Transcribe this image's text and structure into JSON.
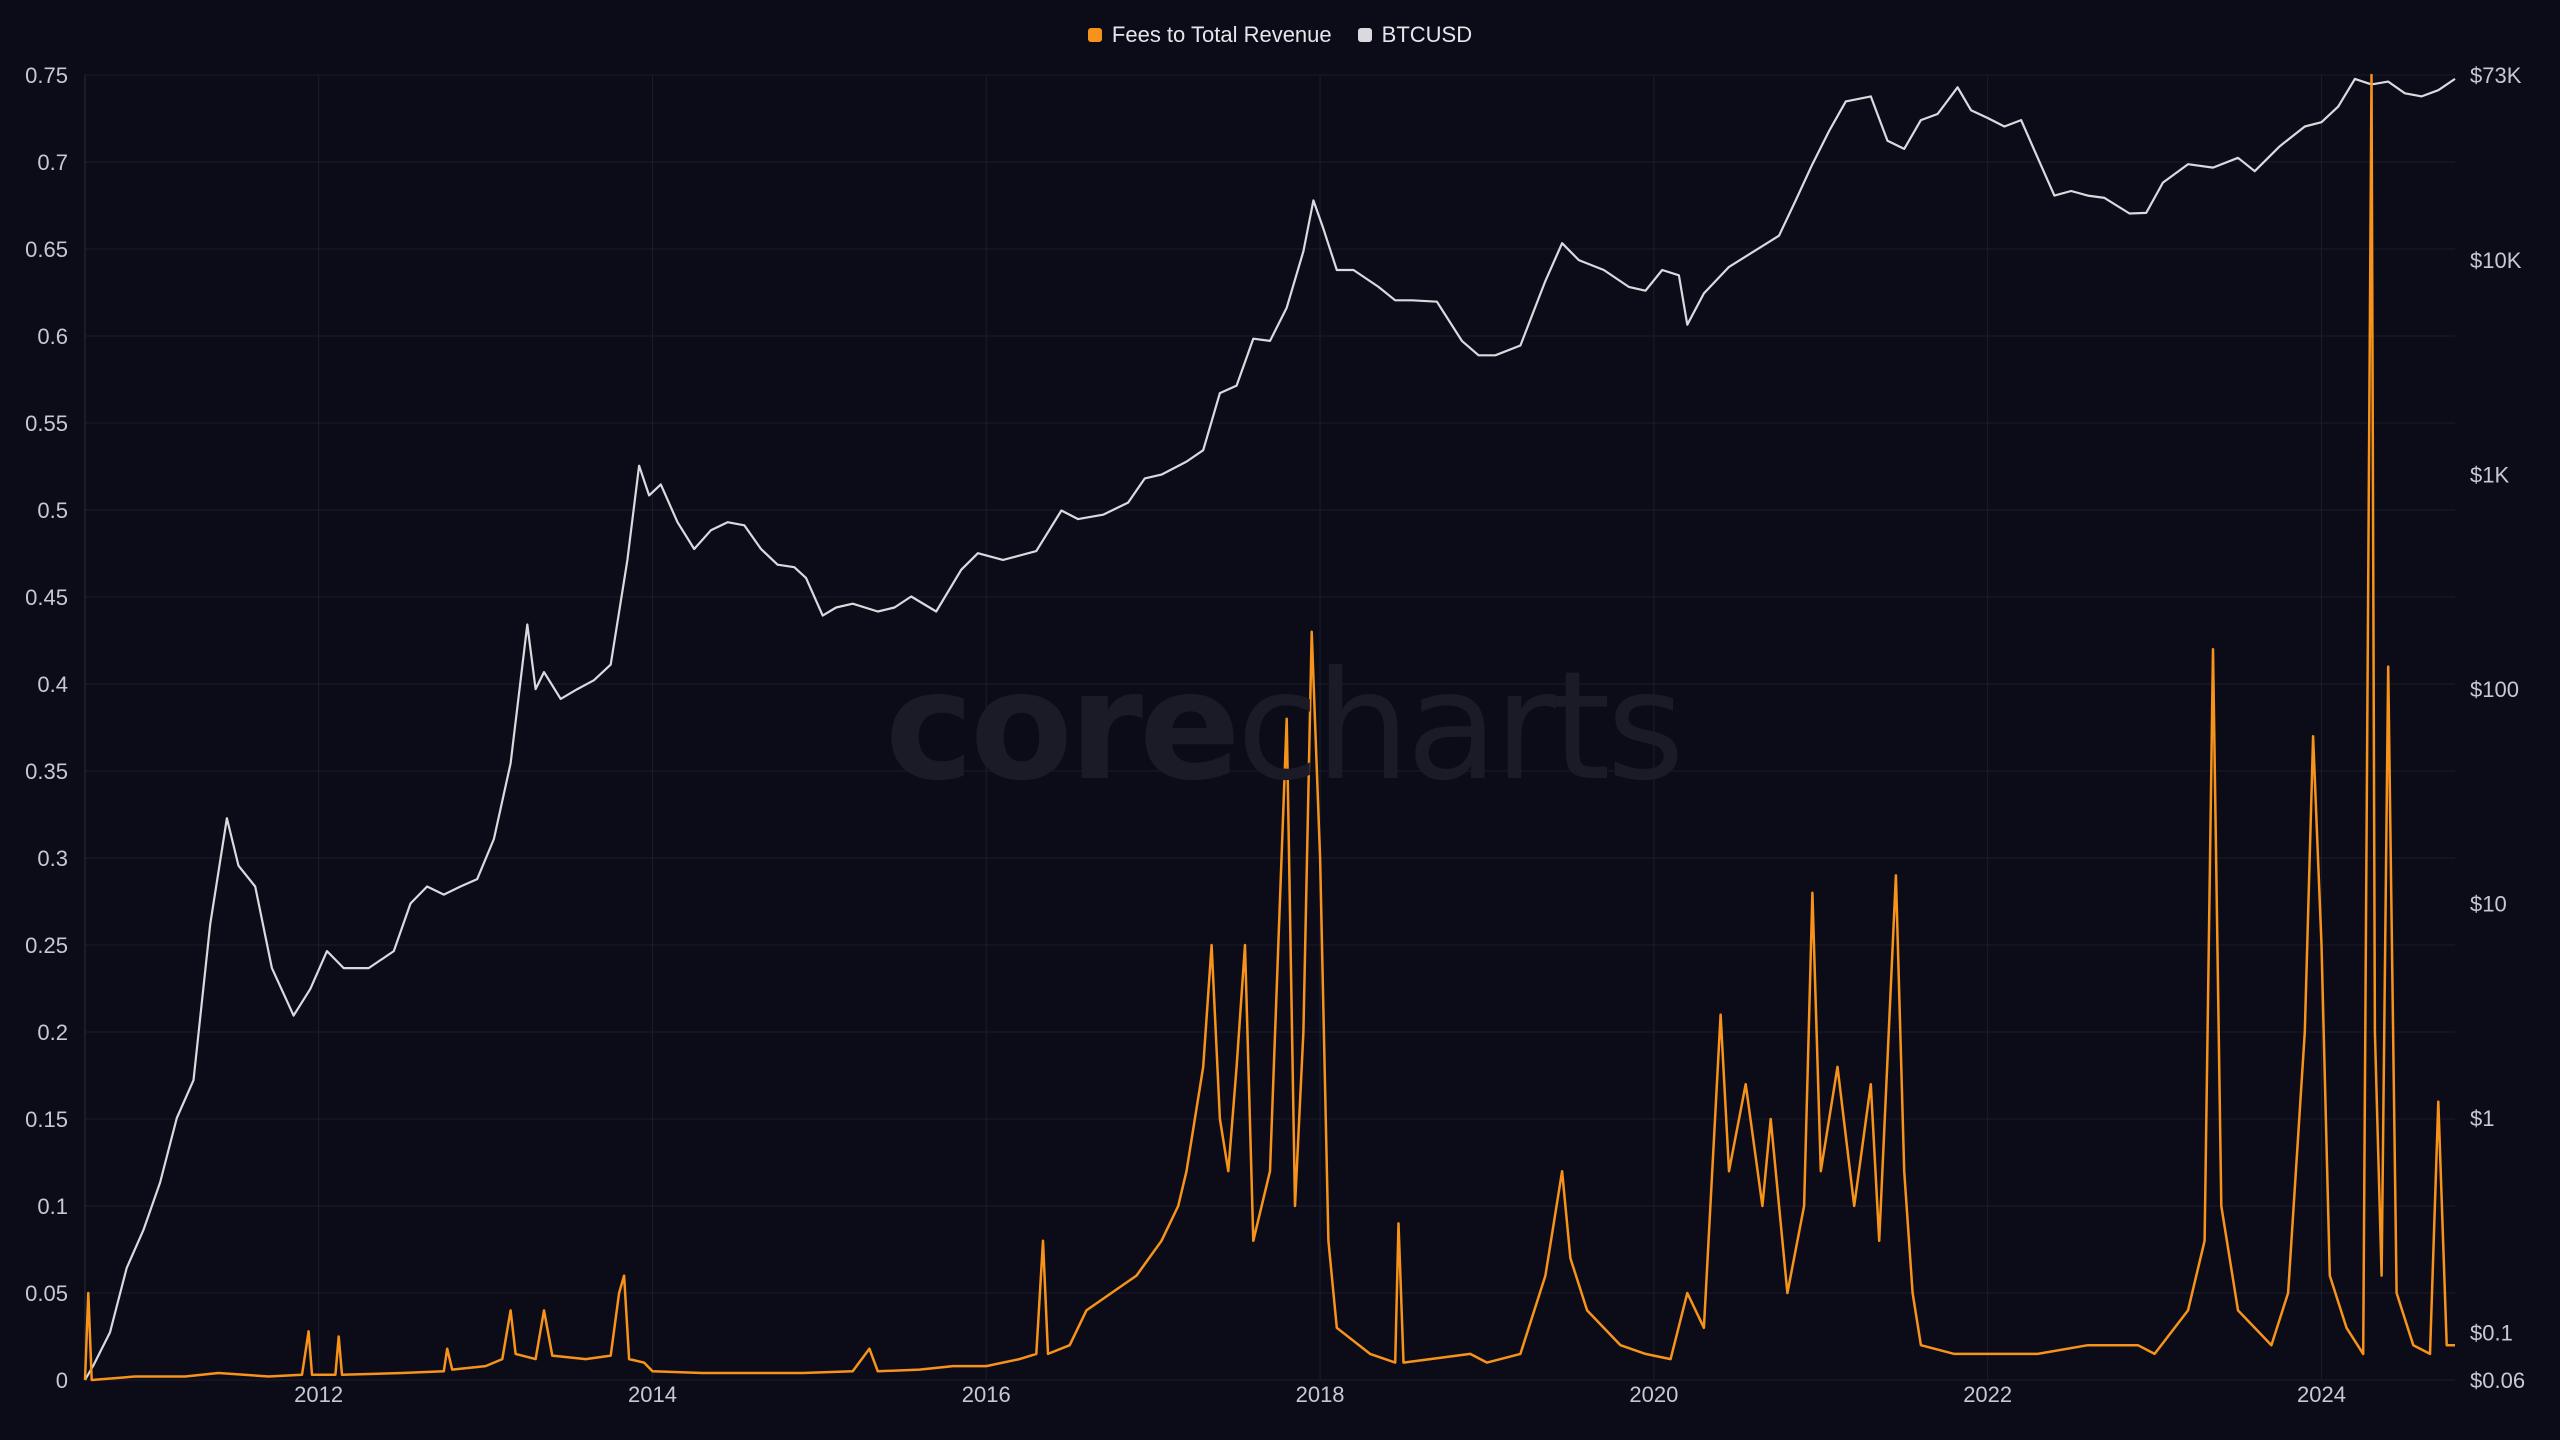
{
  "legend": [
    {
      "label": "Fees to Total Revenue",
      "color": "#f7931a"
    },
    {
      "label": "BTCUSD",
      "color": "#d9d9de"
    }
  ],
  "watermark": {
    "bold": "core",
    "thin": "charts"
  },
  "chart_data": {
    "type": "line",
    "grid": true,
    "legend_position": "top-center",
    "x_axis": {
      "ticks": [
        "2012",
        "2014",
        "2016",
        "2018",
        "2020",
        "2022",
        "2024"
      ],
      "range": [
        2010.6,
        2024.8
      ]
    },
    "y_left": {
      "ticks": [
        "0",
        "0.05",
        "0.1",
        "0.15",
        "0.2",
        "0.25",
        "0.3",
        "0.35",
        "0.4",
        "0.45",
        "0.5",
        "0.55",
        "0.6",
        "0.65",
        "0.7",
        "0.75"
      ],
      "range": [
        0,
        0.75
      ]
    },
    "y_right": {
      "scale": "log",
      "ticks": [
        "$73K",
        "$10K",
        "$1K",
        "$100",
        "$10",
        "$1",
        "$0.1",
        "$0.06"
      ],
      "tick_values": [
        73000,
        10000,
        1000,
        100,
        10,
        1,
        0.1,
        0.06
      ],
      "range": [
        0.06,
        73000
      ]
    },
    "series": [
      {
        "name": "BTCUSD",
        "axis": "right",
        "color": "#d9d9de",
        "points": [
          [
            2010.6,
            0.06
          ],
          [
            2010.65,
            0.07
          ],
          [
            2010.75,
            0.1
          ],
          [
            2010.85,
            0.2
          ],
          [
            2010.95,
            0.3
          ],
          [
            2011.05,
            0.5
          ],
          [
            2011.15,
            1.0
          ],
          [
            2011.25,
            1.5
          ],
          [
            2011.35,
            8
          ],
          [
            2011.45,
            25
          ],
          [
            2011.52,
            15
          ],
          [
            2011.62,
            12
          ],
          [
            2011.72,
            5
          ],
          [
            2011.85,
            3
          ],
          [
            2011.95,
            4
          ],
          [
            2012.05,
            6
          ],
          [
            2012.15,
            5
          ],
          [
            2012.3,
            5
          ],
          [
            2012.45,
            6
          ],
          [
            2012.55,
            10
          ],
          [
            2012.65,
            12
          ],
          [
            2012.75,
            11
          ],
          [
            2012.85,
            12
          ],
          [
            2012.95,
            13
          ],
          [
            2013.05,
            20
          ],
          [
            2013.15,
            45
          ],
          [
            2013.25,
            200
          ],
          [
            2013.3,
            100
          ],
          [
            2013.35,
            120
          ],
          [
            2013.45,
            90
          ],
          [
            2013.55,
            100
          ],
          [
            2013.65,
            110
          ],
          [
            2013.75,
            130
          ],
          [
            2013.85,
            400
          ],
          [
            2013.92,
            1100
          ],
          [
            2013.98,
            800
          ],
          [
            2014.05,
            900
          ],
          [
            2014.15,
            600
          ],
          [
            2014.25,
            450
          ],
          [
            2014.35,
            550
          ],
          [
            2014.45,
            600
          ],
          [
            2014.55,
            580
          ],
          [
            2014.65,
            450
          ],
          [
            2014.75,
            380
          ],
          [
            2014.85,
            370
          ],
          [
            2014.92,
            330
          ],
          [
            2015.02,
            220
          ],
          [
            2015.1,
            240
          ],
          [
            2015.2,
            250
          ],
          [
            2015.35,
            230
          ],
          [
            2015.45,
            240
          ],
          [
            2015.55,
            270
          ],
          [
            2015.7,
            230
          ],
          [
            2015.85,
            360
          ],
          [
            2015.95,
            430
          ],
          [
            2016.1,
            400
          ],
          [
            2016.3,
            440
          ],
          [
            2016.45,
            680
          ],
          [
            2016.55,
            620
          ],
          [
            2016.7,
            650
          ],
          [
            2016.85,
            740
          ],
          [
            2016.95,
            960
          ],
          [
            2017.05,
            1000
          ],
          [
            2017.2,
            1150
          ],
          [
            2017.3,
            1300
          ],
          [
            2017.4,
            2400
          ],
          [
            2017.5,
            2600
          ],
          [
            2017.6,
            4300
          ],
          [
            2017.7,
            4200
          ],
          [
            2017.8,
            6000
          ],
          [
            2017.9,
            11000
          ],
          [
            2017.96,
            19000
          ],
          [
            2018.02,
            14000
          ],
          [
            2018.1,
            9000
          ],
          [
            2018.2,
            9000
          ],
          [
            2018.35,
            7500
          ],
          [
            2018.45,
            6500
          ],
          [
            2018.55,
            6500
          ],
          [
            2018.7,
            6400
          ],
          [
            2018.85,
            4200
          ],
          [
            2018.95,
            3600
          ],
          [
            2019.05,
            3600
          ],
          [
            2019.2,
            4000
          ],
          [
            2019.35,
            8000
          ],
          [
            2019.45,
            12000
          ],
          [
            2019.55,
            10000
          ],
          [
            2019.7,
            9000
          ],
          [
            2019.85,
            7500
          ],
          [
            2019.95,
            7200
          ],
          [
            2020.05,
            9000
          ],
          [
            2020.15,
            8500
          ],
          [
            2020.2,
            5000
          ],
          [
            2020.3,
            7000
          ],
          [
            2020.45,
            9300
          ],
          [
            2020.6,
            11000
          ],
          [
            2020.75,
            13000
          ],
          [
            2020.85,
            19000
          ],
          [
            2020.95,
            28000
          ],
          [
            2021.05,
            40000
          ],
          [
            2021.15,
            55000
          ],
          [
            2021.3,
            58000
          ],
          [
            2021.4,
            36000
          ],
          [
            2021.5,
            33000
          ],
          [
            2021.6,
            45000
          ],
          [
            2021.7,
            48000
          ],
          [
            2021.82,
            64000
          ],
          [
            2021.9,
            50000
          ],
          [
            2022.0,
            46000
          ],
          [
            2022.1,
            42000
          ],
          [
            2022.2,
            45000
          ],
          [
            2022.3,
            30000
          ],
          [
            2022.4,
            20000
          ],
          [
            2022.5,
            21000
          ],
          [
            2022.6,
            20000
          ],
          [
            2022.7,
            19500
          ],
          [
            2022.85,
            16500
          ],
          [
            2022.95,
            16600
          ],
          [
            2023.05,
            23000
          ],
          [
            2023.2,
            28000
          ],
          [
            2023.35,
            27000
          ],
          [
            2023.5,
            30000
          ],
          [
            2023.6,
            26000
          ],
          [
            2023.75,
            34000
          ],
          [
            2023.9,
            42000
          ],
          [
            2024.0,
            44000
          ],
          [
            2024.1,
            52000
          ],
          [
            2024.2,
            70000
          ],
          [
            2024.3,
            66000
          ],
          [
            2024.4,
            68000
          ],
          [
            2024.5,
            60000
          ],
          [
            2024.6,
            58000
          ],
          [
            2024.7,
            62000
          ],
          [
            2024.8,
            70000
          ]
        ]
      },
      {
        "name": "Fees to Total Revenue",
        "axis": "left",
        "color": "#f7931a",
        "points": [
          [
            2010.6,
            0.0
          ],
          [
            2010.62,
            0.05
          ],
          [
            2010.64,
            0.0
          ],
          [
            2010.9,
            0.002
          ],
          [
            2011.2,
            0.002
          ],
          [
            2011.4,
            0.004
          ],
          [
            2011.7,
            0.002
          ],
          [
            2011.9,
            0.003
          ],
          [
            2011.94,
            0.028
          ],
          [
            2011.96,
            0.003
          ],
          [
            2012.1,
            0.003
          ],
          [
            2012.12,
            0.025
          ],
          [
            2012.14,
            0.003
          ],
          [
            2012.5,
            0.004
          ],
          [
            2012.75,
            0.005
          ],
          [
            2012.77,
            0.018
          ],
          [
            2012.8,
            0.006
          ],
          [
            2013.0,
            0.008
          ],
          [
            2013.1,
            0.012
          ],
          [
            2013.15,
            0.04
          ],
          [
            2013.18,
            0.015
          ],
          [
            2013.3,
            0.012
          ],
          [
            2013.35,
            0.04
          ],
          [
            2013.4,
            0.014
          ],
          [
            2013.6,
            0.012
          ],
          [
            2013.75,
            0.014
          ],
          [
            2013.8,
            0.05
          ],
          [
            2013.83,
            0.06
          ],
          [
            2013.86,
            0.012
          ],
          [
            2013.95,
            0.01
          ],
          [
            2014.0,
            0.005
          ],
          [
            2014.3,
            0.004
          ],
          [
            2014.6,
            0.004
          ],
          [
            2014.9,
            0.004
          ],
          [
            2015.2,
            0.005
          ],
          [
            2015.3,
            0.018
          ],
          [
            2015.35,
            0.005
          ],
          [
            2015.6,
            0.006
          ],
          [
            2015.8,
            0.008
          ],
          [
            2016.0,
            0.008
          ],
          [
            2016.2,
            0.012
          ],
          [
            2016.3,
            0.015
          ],
          [
            2016.34,
            0.08
          ],
          [
            2016.37,
            0.015
          ],
          [
            2016.5,
            0.02
          ],
          [
            2016.6,
            0.04
          ],
          [
            2016.75,
            0.05
          ],
          [
            2016.9,
            0.06
          ],
          [
            2017.05,
            0.08
          ],
          [
            2017.15,
            0.1
          ],
          [
            2017.2,
            0.12
          ],
          [
            2017.3,
            0.18
          ],
          [
            2017.35,
            0.25
          ],
          [
            2017.4,
            0.15
          ],
          [
            2017.45,
            0.12
          ],
          [
            2017.5,
            0.18
          ],
          [
            2017.55,
            0.25
          ],
          [
            2017.6,
            0.08
          ],
          [
            2017.7,
            0.12
          ],
          [
            2017.75,
            0.25
          ],
          [
            2017.8,
            0.38
          ],
          [
            2017.85,
            0.1
          ],
          [
            2017.9,
            0.2
          ],
          [
            2017.95,
            0.43
          ],
          [
            2018.0,
            0.3
          ],
          [
            2018.05,
            0.08
          ],
          [
            2018.1,
            0.03
          ],
          [
            2018.3,
            0.015
          ],
          [
            2018.45,
            0.01
          ],
          [
            2018.47,
            0.09
          ],
          [
            2018.5,
            0.01
          ],
          [
            2018.9,
            0.015
          ],
          [
            2019.0,
            0.01
          ],
          [
            2019.2,
            0.015
          ],
          [
            2019.35,
            0.06
          ],
          [
            2019.45,
            0.12
          ],
          [
            2019.5,
            0.07
          ],
          [
            2019.6,
            0.04
          ],
          [
            2019.8,
            0.02
          ],
          [
            2019.95,
            0.015
          ],
          [
            2020.1,
            0.012
          ],
          [
            2020.2,
            0.05
          ],
          [
            2020.3,
            0.03
          ],
          [
            2020.4,
            0.21
          ],
          [
            2020.45,
            0.12
          ],
          [
            2020.55,
            0.17
          ],
          [
            2020.65,
            0.1
          ],
          [
            2020.7,
            0.15
          ],
          [
            2020.8,
            0.05
          ],
          [
            2020.9,
            0.1
          ],
          [
            2020.95,
            0.28
          ],
          [
            2021.0,
            0.12
          ],
          [
            2021.1,
            0.18
          ],
          [
            2021.2,
            0.1
          ],
          [
            2021.3,
            0.17
          ],
          [
            2021.35,
            0.08
          ],
          [
            2021.45,
            0.29
          ],
          [
            2021.5,
            0.12
          ],
          [
            2021.55,
            0.05
          ],
          [
            2021.6,
            0.02
          ],
          [
            2021.8,
            0.015
          ],
          [
            2022.0,
            0.015
          ],
          [
            2022.3,
            0.015
          ],
          [
            2022.6,
            0.02
          ],
          [
            2022.9,
            0.02
          ],
          [
            2023.0,
            0.015
          ],
          [
            2023.2,
            0.04
          ],
          [
            2023.3,
            0.08
          ],
          [
            2023.35,
            0.42
          ],
          [
            2023.4,
            0.1
          ],
          [
            2023.5,
            0.04
          ],
          [
            2023.6,
            0.03
          ],
          [
            2023.7,
            0.02
          ],
          [
            2023.8,
            0.05
          ],
          [
            2023.9,
            0.2
          ],
          [
            2023.95,
            0.37
          ],
          [
            2024.0,
            0.25
          ],
          [
            2024.05,
            0.06
          ],
          [
            2024.15,
            0.03
          ],
          [
            2024.25,
            0.015
          ],
          [
            2024.3,
            0.75
          ],
          [
            2024.32,
            0.2
          ],
          [
            2024.36,
            0.06
          ],
          [
            2024.4,
            0.41
          ],
          [
            2024.45,
            0.05
          ],
          [
            2024.55,
            0.02
          ],
          [
            2024.65,
            0.015
          ],
          [
            2024.7,
            0.16
          ],
          [
            2024.75,
            0.02
          ],
          [
            2024.8,
            0.02
          ]
        ]
      }
    ]
  }
}
